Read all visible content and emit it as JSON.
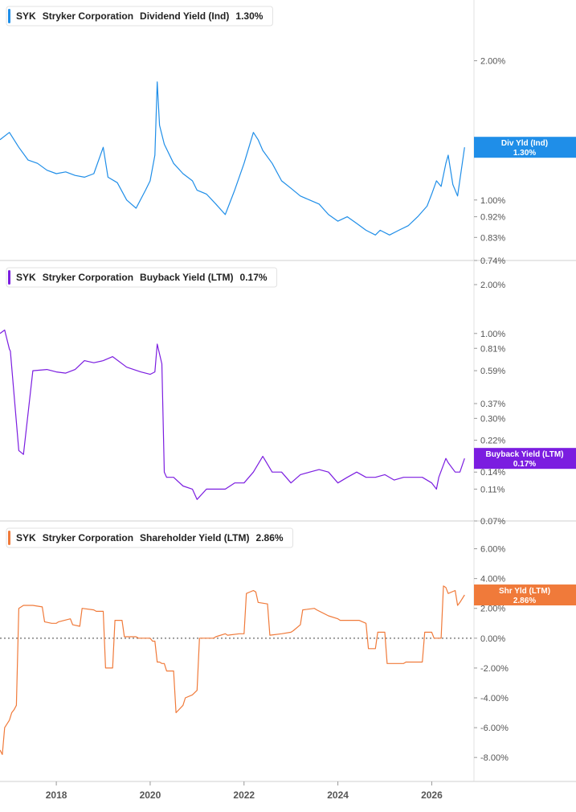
{
  "chart_data": [
    {
      "type": "line",
      "ticker": "SYK",
      "company": "Stryker Corporation",
      "metric": "Dividend Yield (Ind)",
      "last_value": "1.30%",
      "tag_label": "Div Yld (Ind)",
      "tag_value": "1.30%",
      "color": "#1f8ee8",
      "y_scale": "log",
      "ylim": [
        0.74,
        2.4
      ],
      "y_ticks": [
        {
          "v": 2.0,
          "label": "2.00%"
        },
        {
          "v": 1.0,
          "label": "1.00%"
        },
        {
          "v": 0.92,
          "label": "0.92%"
        },
        {
          "v": 0.83,
          "label": "0.83%"
        },
        {
          "v": 0.74,
          "label": "0.74%"
        }
      ],
      "series": [
        {
          "x": [
            2016.8,
            2017.0,
            2017.2,
            2017.4,
            2017.6,
            2017.8,
            2018.0,
            2018.2,
            2018.4,
            2018.6,
            2018.8,
            2019.0,
            2019.1,
            2019.3,
            2019.5,
            2019.7,
            2019.9,
            2020.0,
            2020.1,
            2020.15,
            2020.2,
            2020.3,
            2020.5,
            2020.7,
            2020.9,
            2021.0,
            2021.2,
            2021.4,
            2021.6,
            2021.8,
            2022.0,
            2022.2,
            2022.3,
            2022.4,
            2022.6,
            2022.8,
            2023.0,
            2023.2,
            2023.4,
            2023.6,
            2023.8,
            2024.0,
            2024.2,
            2024.4,
            2024.6,
            2024.8,
            2024.9,
            2025.1,
            2025.3,
            2025.5,
            2025.7,
            2025.9,
            2026.0,
            2026.1,
            2026.2,
            2026.3,
            2026.35,
            2026.45,
            2026.55,
            2026.7
          ],
          "y": [
            1.35,
            1.4,
            1.3,
            1.22,
            1.2,
            1.16,
            1.14,
            1.15,
            1.13,
            1.12,
            1.14,
            1.3,
            1.12,
            1.09,
            1.0,
            0.96,
            1.05,
            1.1,
            1.25,
            1.8,
            1.45,
            1.32,
            1.2,
            1.14,
            1.1,
            1.05,
            1.03,
            0.98,
            0.93,
            1.05,
            1.2,
            1.4,
            1.35,
            1.28,
            1.2,
            1.1,
            1.06,
            1.02,
            1.0,
            0.98,
            0.93,
            0.9,
            0.92,
            0.89,
            0.86,
            0.84,
            0.86,
            0.84,
            0.86,
            0.88,
            0.92,
            0.97,
            1.03,
            1.1,
            1.07,
            1.2,
            1.25,
            1.08,
            1.02,
            1.3
          ]
        }
      ]
    },
    {
      "type": "line",
      "ticker": "SYK",
      "company": "Stryker Corporation",
      "metric": "Buyback Yield (LTM)",
      "last_value": "0.17%",
      "tag_label": "Buyback Yield (LTM)",
      "tag_value": "0.17%",
      "color": "#7b1de0",
      "y_scale": "log",
      "ylim": [
        0.07,
        2.4
      ],
      "y_ticks": [
        {
          "v": 2.0,
          "label": "2.00%"
        },
        {
          "v": 1.0,
          "label": "1.00%"
        },
        {
          "v": 0.81,
          "label": "0.81%"
        },
        {
          "v": 0.59,
          "label": "0.59%"
        },
        {
          "v": 0.37,
          "label": "0.37%"
        },
        {
          "v": 0.3,
          "label": "0.30%"
        },
        {
          "v": 0.22,
          "label": "0.22%"
        },
        {
          "v": 0.14,
          "label": "0.14%"
        },
        {
          "v": 0.11,
          "label": "0.11%"
        },
        {
          "v": 0.07,
          "label": "0.07%"
        }
      ],
      "series": [
        {
          "x": [
            2016.8,
            2016.9,
            2017.0,
            2017.02,
            2017.2,
            2017.25,
            2017.3,
            2017.5,
            2017.8,
            2018.0,
            2018.2,
            2018.4,
            2018.6,
            2018.8,
            2019.0,
            2019.2,
            2019.5,
            2019.8,
            2020.0,
            2020.1,
            2020.15,
            2020.25,
            2020.3,
            2020.35,
            2020.5,
            2020.7,
            2020.9,
            2021.0,
            2021.2,
            2021.4,
            2021.6,
            2021.8,
            2022.0,
            2022.2,
            2022.4,
            2022.6,
            2022.8,
            2023.0,
            2023.2,
            2023.4,
            2023.6,
            2023.8,
            2024.0,
            2024.2,
            2024.4,
            2024.6,
            2024.8,
            2025.0,
            2025.2,
            2025.4,
            2025.6,
            2025.8,
            2026.0,
            2026.1,
            2026.15,
            2026.3,
            2026.35,
            2026.5,
            2026.6,
            2026.7
          ],
          "y": [
            1.0,
            1.05,
            0.8,
            0.78,
            0.19,
            0.185,
            0.18,
            0.59,
            0.6,
            0.58,
            0.57,
            0.6,
            0.68,
            0.66,
            0.68,
            0.72,
            0.62,
            0.58,
            0.56,
            0.58,
            0.86,
            0.65,
            0.14,
            0.13,
            0.13,
            0.115,
            0.11,
            0.095,
            0.11,
            0.11,
            0.11,
            0.12,
            0.12,
            0.14,
            0.175,
            0.14,
            0.14,
            0.12,
            0.135,
            0.14,
            0.145,
            0.14,
            0.12,
            0.13,
            0.14,
            0.13,
            0.13,
            0.135,
            0.125,
            0.13,
            0.13,
            0.13,
            0.12,
            0.11,
            0.13,
            0.17,
            0.16,
            0.14,
            0.14,
            0.17
          ]
        }
      ]
    },
    {
      "type": "line",
      "ticker": "SYK",
      "company": "Stryker Corporation",
      "metric": "Shareholder Yield (LTM)",
      "last_value": "2.86%",
      "tag_label": "Shr Yld (LTM)",
      "tag_value": "2.86%",
      "color": "#f07a3a",
      "y_scale": "linear",
      "ylim": [
        -9.5,
        7.0
      ],
      "zero_line": true,
      "y_ticks": [
        {
          "v": 6,
          "label": "6.00%"
        },
        {
          "v": 4,
          "label": "4.00%"
        },
        {
          "v": 2,
          "label": "2.00%"
        },
        {
          "v": 0,
          "label": "0.00%"
        },
        {
          "v": -2,
          "label": "-2.00%"
        },
        {
          "v": -4,
          "label": "-4.00%"
        },
        {
          "v": -6,
          "label": "-6.00%"
        },
        {
          "v": -8,
          "label": "-8.00%"
        }
      ],
      "series": [
        {
          "x": [
            2016.8,
            2016.85,
            2016.9,
            2017.0,
            2017.05,
            2017.1,
            2017.15,
            2017.2,
            2017.25,
            2017.3,
            2017.5,
            2017.7,
            2017.75,
            2017.9,
            2018.0,
            2018.05,
            2018.3,
            2018.35,
            2018.5,
            2018.55,
            2018.8,
            2018.85,
            2019.0,
            2019.05,
            2019.2,
            2019.25,
            2019.4,
            2019.45,
            2019.7,
            2019.75,
            2020.0,
            2020.05,
            2020.1,
            2020.15,
            2020.2,
            2020.25,
            2020.3,
            2020.35,
            2020.5,
            2020.55,
            2020.7,
            2020.75,
            2020.9,
            2021.0,
            2021.05,
            2021.35,
            2021.4,
            2021.6,
            2021.65,
            2021.9,
            2022.0,
            2022.05,
            2022.2,
            2022.25,
            2022.3,
            2022.5,
            2022.55,
            2022.8,
            2023.0,
            2023.05,
            2023.2,
            2023.25,
            2023.5,
            2023.55,
            2023.8,
            2024.0,
            2024.05,
            2024.4,
            2024.45,
            2024.6,
            2024.65,
            2024.8,
            2024.85,
            2025.0,
            2025.05,
            2025.4,
            2025.45,
            2025.8,
            2025.85,
            2026.0,
            2026.05,
            2026.2,
            2026.25,
            2026.3,
            2026.35,
            2026.5,
            2026.55,
            2026.6,
            2026.7
          ],
          "y": [
            -7.5,
            -7.8,
            -6.0,
            -5.5,
            -5.0,
            -4.8,
            -4.5,
            2.0,
            2.1,
            2.2,
            2.2,
            2.1,
            1.1,
            1.0,
            1.0,
            1.1,
            1.3,
            0.9,
            0.8,
            2.0,
            1.9,
            1.8,
            1.8,
            -2.0,
            -2.0,
            1.2,
            1.2,
            0.1,
            0.1,
            0.0,
            0.0,
            -0.2,
            -0.2,
            -1.6,
            -1.6,
            -1.7,
            -1.7,
            -2.2,
            -2.2,
            -5.0,
            -4.5,
            -4.0,
            -3.8,
            -3.5,
            0.0,
            0.0,
            0.1,
            0.3,
            0.2,
            0.3,
            0.3,
            3.0,
            3.2,
            3.1,
            2.4,
            2.3,
            0.2,
            0.3,
            0.4,
            0.5,
            0.9,
            1.9,
            2.0,
            1.9,
            1.5,
            1.3,
            1.2,
            1.2,
            1.2,
            1.0,
            -0.7,
            -0.7,
            0.4,
            0.4,
            -1.7,
            -1.7,
            -1.6,
            -1.6,
            0.4,
            0.4,
            0.0,
            0.0,
            3.5,
            3.4,
            3.0,
            3.2,
            2.2,
            2.4,
            2.9
          ]
        }
      ]
    }
  ],
  "x_axis": {
    "xlim": [
      2016.8,
      2026.9
    ],
    "ticks": [
      {
        "v": 2018,
        "label": "2018"
      },
      {
        "v": 2020,
        "label": "2020"
      },
      {
        "v": 2022,
        "label": "2022"
      },
      {
        "v": 2024,
        "label": "2024"
      },
      {
        "v": 2026,
        "label": "2026"
      }
    ]
  }
}
